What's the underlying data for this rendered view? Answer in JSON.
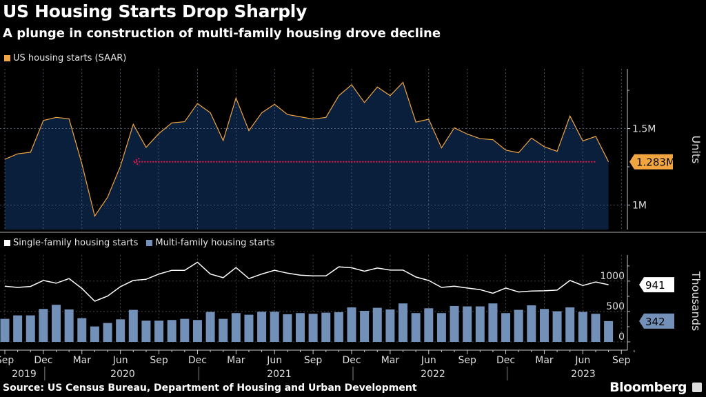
{
  "header": {
    "title": "US Housing Starts Drop Sharply",
    "subtitle": "A plunge in construction of multi-family housing drove decline"
  },
  "footer": {
    "source": "Source: US Census Bureau, Department of Housing and Urban Development",
    "brand": "Bloomberg"
  },
  "colors": {
    "background": "#000000",
    "total_line": "#f0a541",
    "total_fill": "#0a1f3c",
    "single_family": "#ffffff",
    "multi_family": "#7290b8",
    "reference_line": "#e0204a",
    "grid": "#555555"
  },
  "chart_data": [
    {
      "type": "area",
      "legend": [
        "US housing starts (SAAR)"
      ],
      "ylabel": "Units",
      "ylim": [
        0.84,
        1.89
      ],
      "y_unit": "millions",
      "yticks": [
        {
          "value": 1.0,
          "label": "1M"
        },
        {
          "value": 1.5,
          "label": "1.5M"
        }
      ],
      "minor_yticks": [
        1.25,
        1.75
      ],
      "grid": true,
      "x_start": "2019-09",
      "x_end": "2023-08",
      "series": [
        {
          "name": "US housing starts (SAAR)",
          "values": [
            1.299,
            1.335,
            1.345,
            1.553,
            1.573,
            1.564,
            1.269,
            0.928,
            1.051,
            1.254,
            1.528,
            1.377,
            1.468,
            1.537,
            1.545,
            1.664,
            1.604,
            1.422,
            1.7,
            1.486,
            1.603,
            1.659,
            1.592,
            1.577,
            1.562,
            1.573,
            1.715,
            1.787,
            1.67,
            1.772,
            1.715,
            1.802,
            1.542,
            1.561,
            1.374,
            1.505,
            1.464,
            1.434,
            1.427,
            1.359,
            1.342,
            1.438,
            1.381,
            1.351,
            1.582,
            1.419,
            1.449,
            1.283
          ]
        }
      ],
      "last_value_label": "1.283M",
      "reference_line": {
        "value": 1.283,
        "from": "2020-07",
        "to": "2023-07",
        "style": "dotted arrow"
      }
    },
    {
      "type": "bar+line",
      "legend": [
        "Single-family housing starts",
        "Multi-family housing starts"
      ],
      "ylabel": "Thousands",
      "ylim": [
        0,
        1430
      ],
      "yticks": [
        {
          "value": 0,
          "label": "0"
        },
        {
          "value": 500,
          "label": "500"
        },
        {
          "value": 1000,
          "label": "1000"
        }
      ],
      "minor_yticks": [
        250,
        750,
        1250
      ],
      "grid": true,
      "x_start": "2019-09",
      "x_end": "2023-08",
      "series": [
        {
          "name": "Single-family housing starts",
          "type": "line",
          "values": [
            917,
            897,
            913,
            1011,
            966,
            1042,
            879,
            670,
            754,
            909,
            1011,
            1030,
            1117,
            1178,
            1178,
            1311,
            1117,
            1057,
            1223,
            1042,
            1117,
            1178,
            1132,
            1099,
            1087,
            1087,
            1235,
            1220,
            1163,
            1216,
            1181,
            1181,
            1068,
            1011,
            897,
            917,
            886,
            860,
            800,
            886,
            822,
            837,
            841,
            852,
            1011,
            928,
            985,
            941
          ]
        },
        {
          "name": "Multi-family housing starts",
          "type": "bar",
          "values": [
            379,
            436,
            436,
            542,
            610,
            534,
            390,
            254,
            311,
            371,
            527,
            349,
            349,
            360,
            379,
            360,
            493,
            379,
            474,
            447,
            496,
            496,
            455,
            474,
            462,
            481,
            489,
            568,
            511,
            561,
            534,
            633,
            474,
            553,
            474,
            591,
            584,
            584,
            633,
            474,
            527,
            602,
            542,
            504,
            568,
            493,
            462,
            342
          ]
        }
      ],
      "last_value_labels": [
        "941",
        "342"
      ]
    }
  ],
  "x_axis": {
    "month_ticks": [
      "Sep",
      "Dec",
      "Mar",
      "Jun",
      "Sep",
      "Dec",
      "Mar",
      "Jun",
      "Sep",
      "Dec",
      "Mar",
      "Jun",
      "Sep",
      "Dec",
      "Mar",
      "Jun",
      "Sep"
    ],
    "years": [
      "2019",
      "2020",
      "2021",
      "2022",
      "2023"
    ]
  }
}
